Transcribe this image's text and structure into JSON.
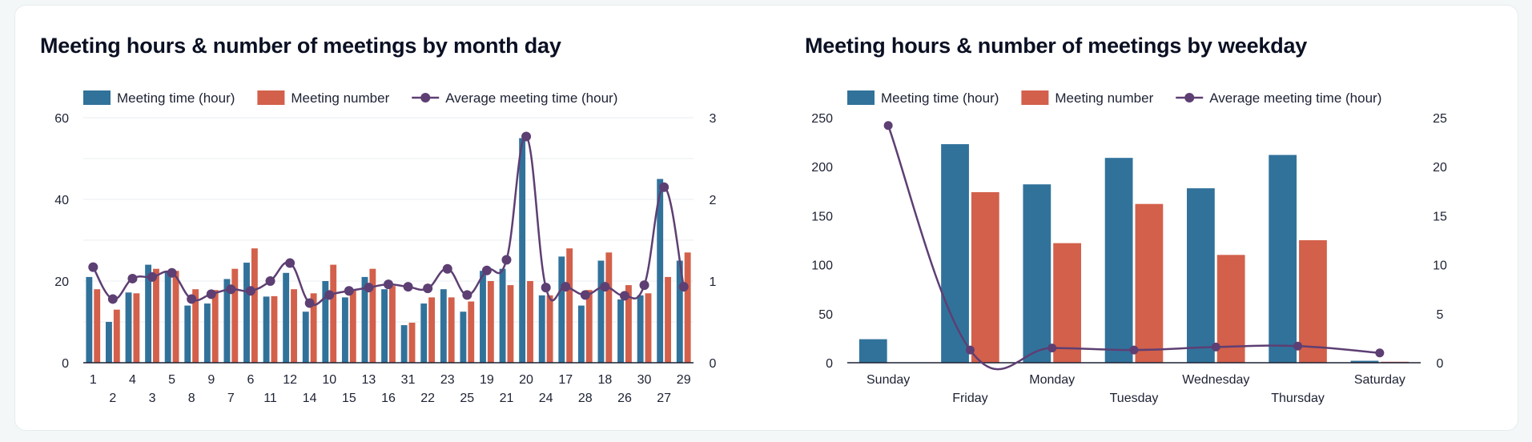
{
  "colors": {
    "meeting_time": "#31729b",
    "meeting_number": "#d3604b",
    "average": "#5d3f73"
  },
  "chart_data": [
    {
      "type": "bar",
      "title": "Meeting hours & number of meetings by month day",
      "categories": [
        "1",
        "2",
        "4",
        "3",
        "5",
        "8",
        "9",
        "7",
        "6",
        "11",
        "12",
        "14",
        "10",
        "15",
        "13",
        "16",
        "31",
        "22",
        "23",
        "25",
        "19",
        "21",
        "20",
        "24",
        "17",
        "28",
        "18",
        "26",
        "30",
        "27",
        "29"
      ],
      "series": [
        {
          "name": "Meeting time (hour)",
          "type": "bar",
          "axis": "left",
          "values": [
            21,
            10,
            17.2,
            24,
            22.5,
            14,
            14.5,
            20.5,
            24.5,
            16.2,
            22,
            12.5,
            20,
            16,
            21,
            18,
            9.2,
            14.5,
            18,
            12.5,
            22.5,
            23,
            55,
            16.5,
            26,
            14,
            25,
            15.5,
            16.5,
            45,
            25
          ]
        },
        {
          "name": "Meeting number",
          "type": "bar",
          "axis": "left",
          "values": [
            18,
            13,
            17,
            23,
            22.5,
            18,
            17.8,
            23,
            28,
            16.3,
            18,
            17,
            24,
            18,
            23,
            18.8,
            9.8,
            16,
            16,
            15,
            20,
            19,
            20,
            16.5,
            28,
            17.8,
            27,
            19,
            17,
            21,
            27
          ]
        },
        {
          "name": "Average meeting time (hour)",
          "type": "line",
          "axis": "right",
          "values": [
            1.17,
            0.78,
            1.03,
            1.05,
            1.1,
            0.78,
            0.84,
            0.9,
            0.88,
            1.0,
            1.22,
            0.73,
            0.83,
            0.88,
            0.92,
            0.96,
            0.93,
            0.91,
            1.15,
            0.83,
            1.13,
            1.26,
            2.77,
            0.92,
            0.93,
            0.83,
            0.93,
            0.82,
            0.95,
            2.15,
            0.93
          ]
        }
      ],
      "ylim_left": [
        0,
        60
      ],
      "yticks_left": [
        0,
        20,
        40,
        60
      ],
      "ylim_right": [
        0,
        3
      ],
      "yticks_right": [
        0,
        1,
        2,
        3
      ],
      "grid": true,
      "legend_position": "top-left"
    },
    {
      "type": "bar",
      "title": "Meeting hours & number of meetings by weekday",
      "categories": [
        "Sunday",
        "Friday",
        "Monday",
        "Tuesday",
        "Wednesday",
        "Thursday",
        "Saturday"
      ],
      "series": [
        {
          "name": "Meeting time (hour)",
          "type": "bar",
          "axis": "left",
          "values": [
            24,
            223,
            182,
            209,
            178,
            212,
            2
          ]
        },
        {
          "name": "Meeting number",
          "type": "bar",
          "axis": "left",
          "values": [
            0,
            174,
            122,
            162,
            110,
            125,
            1
          ]
        },
        {
          "name": "Average meeting time (hour)",
          "type": "line",
          "axis": "right",
          "values": [
            24.2,
            1.3,
            1.5,
            1.3,
            1.6,
            1.7,
            1.0
          ]
        }
      ],
      "ylim_left": [
        0,
        250
      ],
      "yticks_left": [
        0,
        50,
        100,
        150,
        200,
        250
      ],
      "ylim_right": [
        0,
        25
      ],
      "yticks_right": [
        0,
        5,
        10,
        15,
        20,
        25
      ],
      "grid": false,
      "legend_position": "top-left"
    }
  ]
}
